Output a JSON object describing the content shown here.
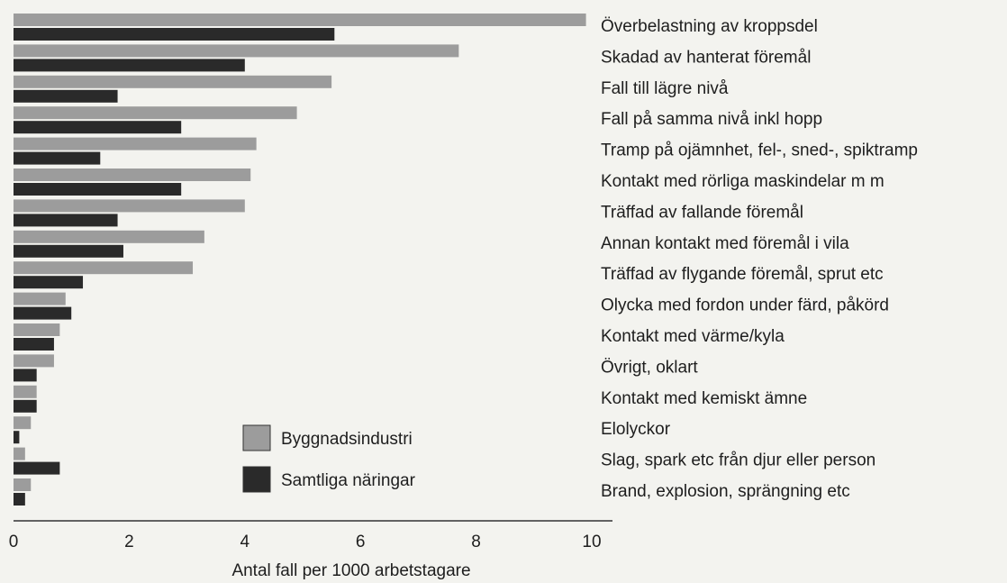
{
  "chart_data": {
    "type": "hbar",
    "x_label": "Antal fall per 1000 arbetstagare",
    "categories": [
      "Överbelastning av kroppsdel",
      "Skadad av hanterat föremål",
      "Fall till lägre nivå",
      "Fall på samma nivå inkl hopp",
      "Tramp på ojämnhet, fel-, sned-, spiktramp",
      "Kontakt med rörliga maskindelar m m",
      "Träffad av fallande föremål",
      "Annan kontakt med föremål i vila",
      "Träffad av flygande föremål, sprut etc",
      "Olycka med fordon under färd, påkörd",
      "Kontakt med värme/kyla",
      "Övrigt, oklart",
      "Kontakt med kemiskt ämne",
      "Elolyckor",
      "Slag, spark etc från djur eller person",
      "Brand, explosion, sprängning etc"
    ],
    "series": [
      {
        "name": "Byggnadsindustri",
        "color": "#9c9c9c",
        "values": [
          9.9,
          7.7,
          5.5,
          4.9,
          4.2,
          4.1,
          4.0,
          3.3,
          3.1,
          0.9,
          0.8,
          0.7,
          0.4,
          0.3,
          0.2,
          0.3
        ]
      },
      {
        "name": "Samtliga näringar",
        "color": "#2a2a2a",
        "values": [
          5.55,
          4.0,
          1.8,
          2.9,
          1.5,
          2.9,
          1.8,
          1.9,
          1.2,
          1.0,
          0.7,
          0.4,
          0.4,
          0.1,
          0.8,
          0.2
        ]
      }
    ],
    "xlim": [
      0,
      10
    ],
    "xticks": [
      0,
      2,
      4,
      6,
      8,
      10
    ],
    "grid": false
  }
}
